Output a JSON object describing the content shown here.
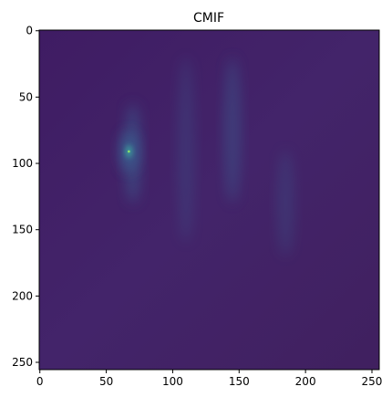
{
  "chart_data": {
    "type": "heatmap",
    "title": "CMIF",
    "xlabel": "",
    "ylabel": "",
    "xlim": [
      0,
      255
    ],
    "ylim": [
      0,
      255
    ],
    "y_axis_inverted": true,
    "x_ticks": [
      0,
      50,
      100,
      150,
      200,
      250
    ],
    "y_ticks": [
      0,
      50,
      100,
      150,
      200,
      250
    ],
    "colormap": "viridis",
    "colors": {
      "background_low": "#3e1a62",
      "background_mid": "#45286c",
      "ridge": "#3a5e90",
      "peak_halo": "#3cb0a0",
      "peak": "#8fe66a"
    },
    "features": [
      {
        "kind": "ridge",
        "x": 70,
        "y_range": [
          55,
          130
        ],
        "intensity": 0.55
      },
      {
        "kind": "ridge",
        "x": 110,
        "y_range": [
          20,
          160
        ],
        "intensity": 0.3
      },
      {
        "kind": "ridge",
        "x": 145,
        "y_range": [
          20,
          130
        ],
        "intensity": 0.45
      },
      {
        "kind": "ridge",
        "x": 185,
        "y_range": [
          90,
          170
        ],
        "intensity": 0.3
      },
      {
        "kind": "peak",
        "x": 67,
        "y": 91,
        "intensity": 1.0
      }
    ]
  }
}
